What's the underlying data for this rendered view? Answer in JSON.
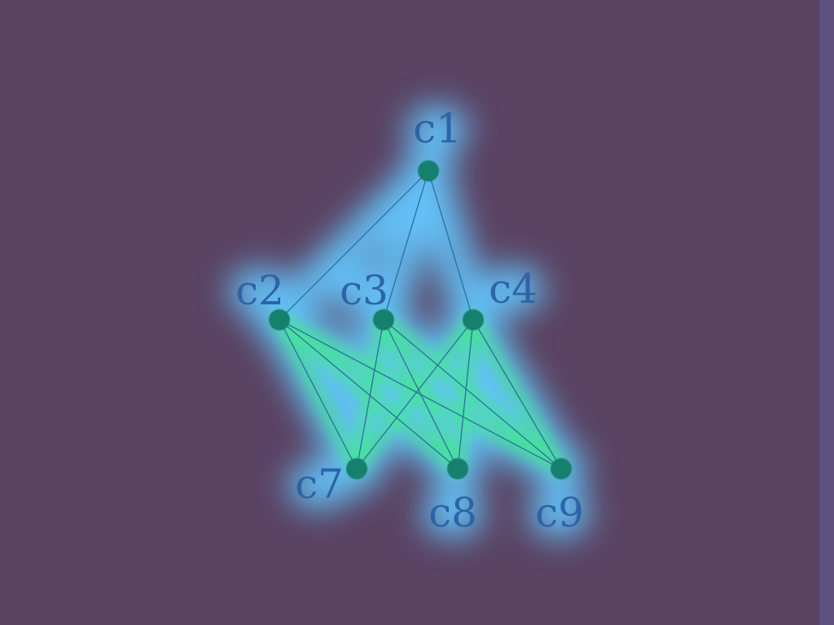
{
  "diagram": {
    "colors": {
      "background": "#5a4363",
      "halo": "#63c8ff",
      "halo_core": "#3cf07c",
      "node_fill": "#14806e",
      "edge": "#2b6fa0",
      "label": "#2d63a8"
    },
    "nodes": [
      {
        "id": "c1",
        "label": "c1"
      },
      {
        "id": "c2",
        "label": "c2"
      },
      {
        "id": "c3",
        "label": "c3"
      },
      {
        "id": "c4",
        "label": "c4"
      },
      {
        "id": "c7",
        "label": "c7"
      },
      {
        "id": "c8",
        "label": "c8"
      },
      {
        "id": "c9",
        "label": "c9"
      }
    ],
    "edges": [
      {
        "from": "c1",
        "to": "c2"
      },
      {
        "from": "c1",
        "to": "c3"
      },
      {
        "from": "c1",
        "to": "c4"
      },
      {
        "from": "c2",
        "to": "c7"
      },
      {
        "from": "c2",
        "to": "c8"
      },
      {
        "from": "c2",
        "to": "c9"
      },
      {
        "from": "c3",
        "to": "c7"
      },
      {
        "from": "c3",
        "to": "c8"
      },
      {
        "from": "c3",
        "to": "c9"
      },
      {
        "from": "c4",
        "to": "c7"
      },
      {
        "from": "c4",
        "to": "c8"
      },
      {
        "from": "c4",
        "to": "c9"
      }
    ]
  }
}
